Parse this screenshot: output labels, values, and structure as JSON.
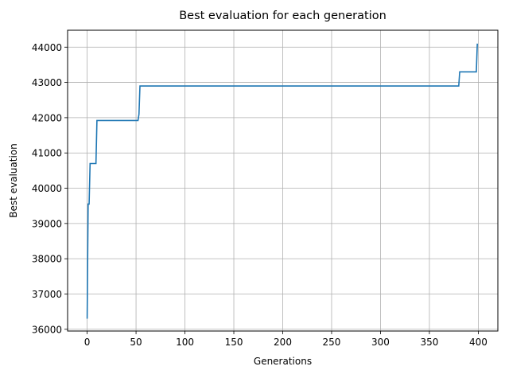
{
  "chart_data": {
    "type": "line",
    "title": "Best evaluation for each generation",
    "xlabel": "Generations",
    "ylabel": "Best evaluation",
    "xlim": [
      -20,
      420
    ],
    "ylim": [
      35950,
      44480
    ],
    "xticks": [
      0,
      50,
      100,
      150,
      200,
      250,
      300,
      350,
      400
    ],
    "yticks": [
      36000,
      37000,
      38000,
      39000,
      40000,
      41000,
      42000,
      43000,
      44000
    ],
    "grid": true,
    "line_color": "#1f77b4",
    "series": [
      {
        "x": [
          0,
          1,
          2,
          3,
          9,
          10,
          52,
          53,
          54,
          380,
          381,
          398,
          399
        ],
        "y": [
          36300,
          39550,
          39550,
          40700,
          40700,
          41920,
          41920,
          42100,
          42900,
          42900,
          43300,
          43300,
          44100
        ]
      }
    ]
  }
}
